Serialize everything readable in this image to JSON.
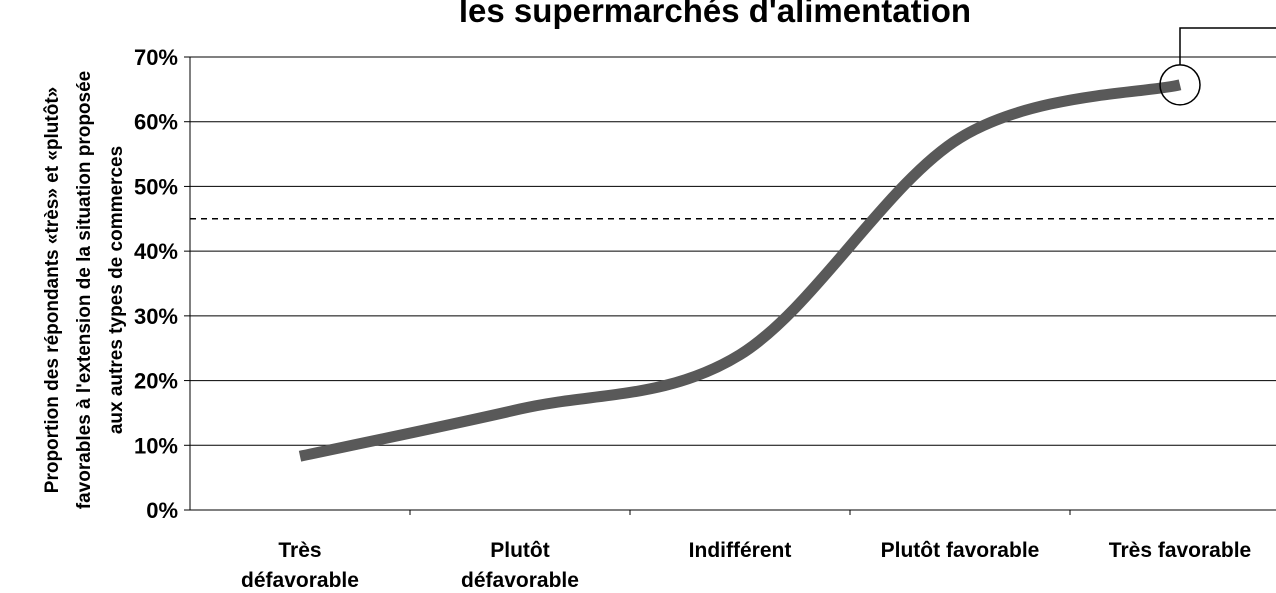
{
  "chart_data": {
    "type": "line",
    "title": "les supermarchés d'alimentation",
    "ylabel": [
      "Proportion des répondants «très» et «plutôt»",
      "favorables à l'extension de la situation proposée",
      "aux autres types de commerces"
    ],
    "categories": [
      "Très\ndéfavorable",
      "Plutôt\ndéfavorable",
      "Indifférent",
      "Plutôt favorable",
      "Très favorable"
    ],
    "series": [
      {
        "name": null,
        "color": "#595959",
        "values": [
          8.3,
          15.6,
          24,
          57.5,
          65.7
        ]
      }
    ],
    "ylim": [
      0,
      70
    ],
    "yticks": [
      {
        "value": 0,
        "label": "0%"
      },
      {
        "value": 10,
        "label": "10%"
      },
      {
        "value": 20,
        "label": "20%"
      },
      {
        "value": 30,
        "label": "30%"
      },
      {
        "value": 40,
        "label": "40%"
      },
      {
        "value": 50,
        "label": "50%"
      },
      {
        "value": 60,
        "label": "60%"
      },
      {
        "value": 70,
        "label": "70%"
      }
    ],
    "reference_line": 45,
    "grid": true
  }
}
